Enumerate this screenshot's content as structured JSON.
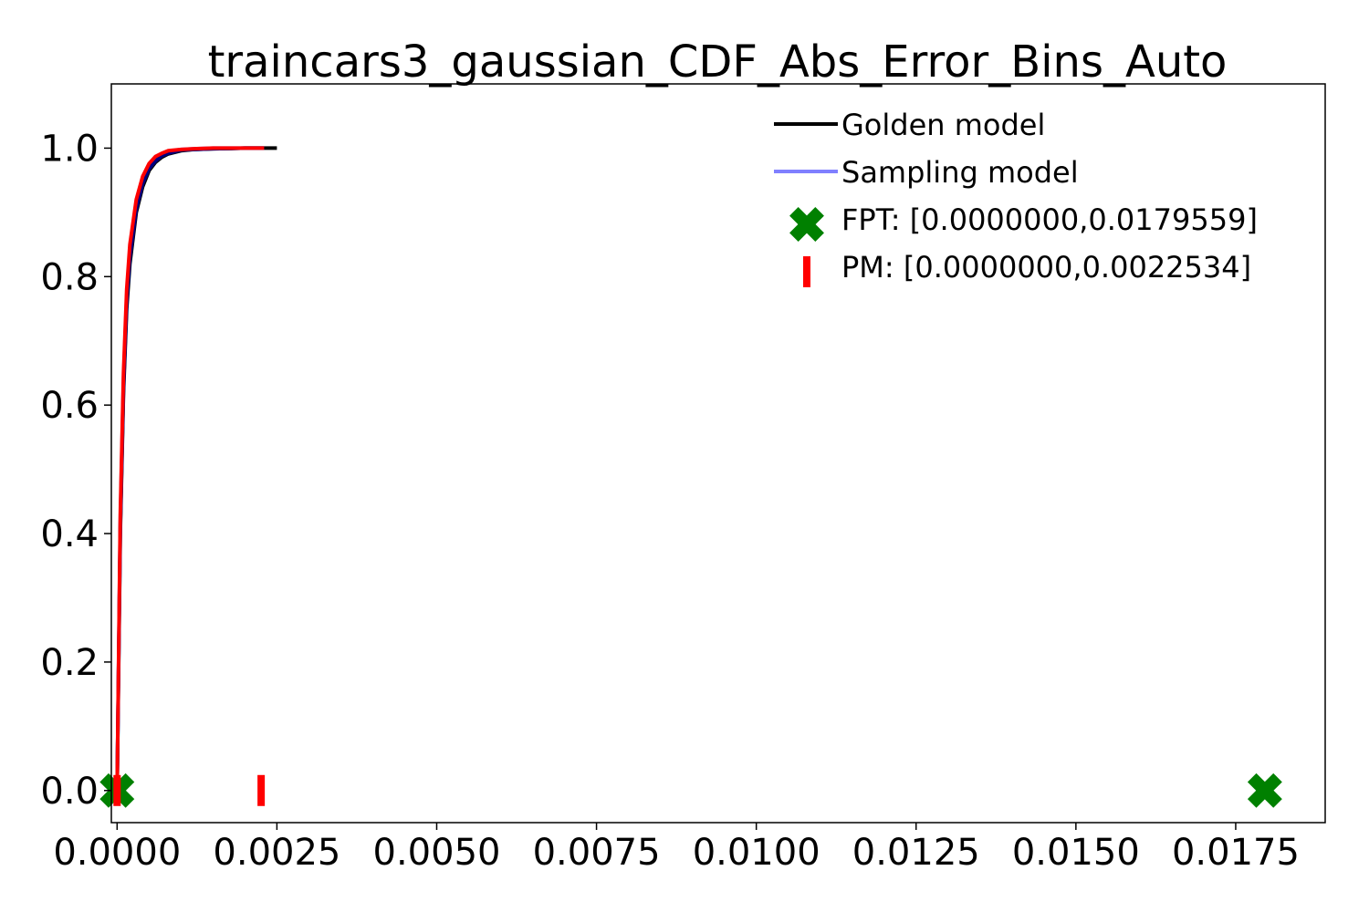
{
  "chart_data": {
    "type": "line",
    "title": "traincars3_gaussian_CDF_Abs_Error_Bins_Auto",
    "xlabel": "",
    "ylabel": "",
    "xlim": [
      -9e-05,
      0.0189
    ],
    "ylim": [
      -0.05,
      1.1
    ],
    "x_ticks": [
      0.0,
      0.0025,
      0.005,
      0.0075,
      0.01,
      0.0125,
      0.015,
      0.0175
    ],
    "x_tick_labels": [
      "0.0000",
      "0.0025",
      "0.0050",
      "0.0075",
      "0.0100",
      "0.0125",
      "0.0150",
      "0.0175"
    ],
    "y_ticks": [
      0.0,
      0.2,
      0.4,
      0.6,
      0.8,
      1.0
    ],
    "y_tick_labels": [
      "0.0",
      "0.2",
      "0.4",
      "0.6",
      "0.8",
      "1.0"
    ],
    "grid": false,
    "legend_position": "top-right",
    "series": [
      {
        "name": "Golden model",
        "color": "#000000",
        "x": [
          0.0,
          5e-05,
          0.0001,
          0.00015,
          0.0002,
          0.0003,
          0.0004,
          0.0005,
          0.0006,
          0.0007,
          0.0008,
          0.001,
          0.0012,
          0.0015,
          0.002,
          0.0025
        ],
        "y": [
          0.0,
          0.4,
          0.62,
          0.75,
          0.82,
          0.9,
          0.94,
          0.965,
          0.978,
          0.986,
          0.991,
          0.996,
          0.998,
          0.999,
          1.0,
          1.0
        ]
      },
      {
        "name": "Sampling model",
        "color": "#8080ff",
        "x": [
          0.0,
          5e-05,
          0.0001,
          0.00015,
          0.0002,
          0.0003,
          0.0004,
          0.0005,
          0.0006,
          0.0007,
          0.0008,
          0.001,
          0.0012,
          0.0015,
          0.002,
          0.0023
        ],
        "y": [
          0.0,
          0.42,
          0.64,
          0.77,
          0.84,
          0.915,
          0.952,
          0.974,
          0.985,
          0.991,
          0.995,
          0.998,
          0.999,
          1.0,
          1.0,
          1.0
        ]
      }
    ],
    "overlay_curves": [
      {
        "color": "#000080",
        "x": [
          0.0,
          5e-05,
          0.0001,
          0.00015,
          0.0002,
          0.0003,
          0.0004,
          0.0005,
          0.0006,
          0.0007,
          0.0008,
          0.001,
          0.0012,
          0.0015,
          0.002,
          0.0023
        ],
        "y": [
          0.0,
          0.41,
          0.63,
          0.76,
          0.83,
          0.905,
          0.945,
          0.968,
          0.98,
          0.988,
          0.992,
          0.997,
          0.998,
          0.999,
          1.0,
          1.0
        ]
      },
      {
        "color": "#ff0000",
        "x": [
          0.0,
          5e-05,
          0.0001,
          0.00015,
          0.0002,
          0.0003,
          0.0004,
          0.0005,
          0.0006,
          0.0007,
          0.0008,
          0.001,
          0.0012,
          0.0015,
          0.002,
          0.0023
        ],
        "y": [
          0.0,
          0.43,
          0.65,
          0.78,
          0.85,
          0.92,
          0.956,
          0.976,
          0.987,
          0.992,
          0.996,
          0.998,
          0.999,
          1.0,
          1.0,
          1.0
        ]
      }
    ],
    "markers": [
      {
        "name": "FPT: [0.0000000,0.0179559]",
        "shape": "x-cross",
        "color": "#008000",
        "points": [
          [
            0.0,
            0.0
          ],
          [
            0.0179559,
            0.0
          ]
        ]
      },
      {
        "name": "PM: [0.0000000,0.0022534]",
        "shape": "vertical-bar",
        "color": "#ff0000",
        "points": [
          [
            0.0,
            0.0
          ],
          [
            0.0022534,
            0.0
          ]
        ]
      }
    ]
  }
}
